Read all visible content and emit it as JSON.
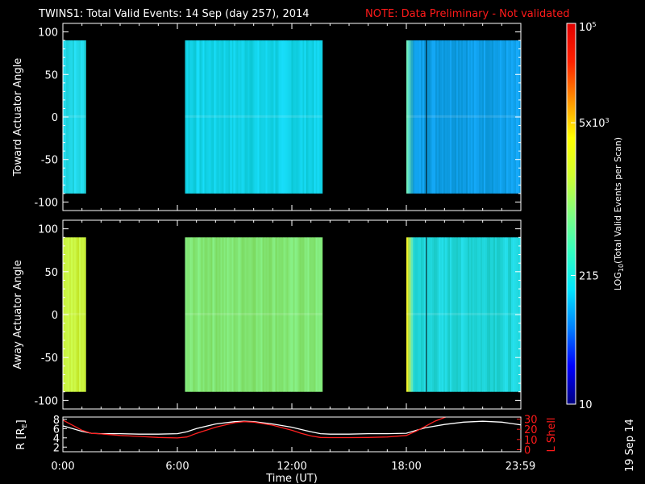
{
  "title": {
    "main": "TWINS1: Total Valid Events: 14 Sep (day 257), 2014",
    "note": "NOTE: Data Preliminary - Not validated",
    "note_color": "#ff1a1a"
  },
  "date_stamp": "19 Sep 14",
  "chart_data": [
    {
      "type": "heatmap",
      "panel": "top",
      "ylabel": "Toward Actuator Angle",
      "ylim": [
        -110,
        110
      ],
      "yticks": [
        "100",
        "50",
        "0",
        "-50",
        "-100"
      ],
      "xlim_hours": [
        0,
        24
      ],
      "data_range_angle": [
        -90,
        90
      ],
      "segments": [
        {
          "start_h": 0.0,
          "end_h": 1.2,
          "base_color": "#22d9e9"
        },
        {
          "start_h": 6.4,
          "end_h": 13.6,
          "base_color": "#12d2e7"
        },
        {
          "start_h": 18.0,
          "end_h": 24.0,
          "base_color": "#0f9fe8",
          "leading_color": "#6ce6b0"
        }
      ],
      "marker_line_h": 19.05
    },
    {
      "type": "heatmap",
      "panel": "middle",
      "ylabel": "Away Actuator Angle",
      "ylim": [
        -110,
        110
      ],
      "yticks": [
        "100",
        "50",
        "0",
        "-50",
        "-100"
      ],
      "xlim_hours": [
        0,
        24
      ],
      "data_range_angle": [
        -90,
        90
      ],
      "segments": [
        {
          "start_h": 0.0,
          "end_h": 1.2,
          "base_color": "#c8f03a"
        },
        {
          "start_h": 6.4,
          "end_h": 13.6,
          "base_color": "#82e675"
        },
        {
          "start_h": 18.0,
          "end_h": 24.0,
          "base_color": "#1fd5d9",
          "leading_color": "#eef22a"
        }
      ],
      "marker_line_h": 19.05
    },
    {
      "type": "line",
      "panel": "orbit",
      "ylabel_left": "R [R",
      "ylabel_left_sub": "E",
      "ylabel_left_end": "]",
      "ylabel_right": "L Shell",
      "yticks_left": [
        "8",
        "6",
        "4",
        "2"
      ],
      "ylim_left": [
        1,
        8.5
      ],
      "yticks_right": [
        "30",
        "20",
        "10",
        "0"
      ],
      "ylim_right": [
        -2,
        32
      ],
      "xlabel": "Time (UT)",
      "xticks": [
        "0:00",
        "6:00",
        "12:00",
        "18:00",
        "23:59"
      ],
      "xtick_hours": [
        0,
        6,
        12,
        18,
        23.98
      ],
      "series": [
        {
          "color": "#ffffff",
          "axis": "left",
          "x": [
            0,
            0.5,
            1.0,
            1.5,
            2,
            3,
            4,
            5,
            6,
            6.5,
            7,
            8,
            9,
            9.5,
            10,
            11,
            12,
            12.5,
            13,
            13.5,
            14,
            15,
            16,
            17,
            18,
            18.5,
            19,
            20,
            21,
            22,
            23,
            24
          ],
          "y": [
            6.6,
            6.0,
            5.4,
            5.0,
            4.9,
            4.9,
            4.8,
            4.8,
            4.9,
            5.3,
            6.0,
            7.0,
            7.5,
            7.6,
            7.5,
            7.0,
            6.3,
            5.8,
            5.3,
            4.9,
            4.8,
            4.8,
            4.9,
            4.9,
            5.0,
            5.6,
            6.2,
            6.9,
            7.4,
            7.6,
            7.4,
            6.8
          ]
        },
        {
          "color": "#ff2020",
          "axis": "right",
          "x": [
            0,
            0.5,
            1.0,
            1.5,
            2,
            3,
            4,
            5,
            6,
            6.5,
            7,
            8,
            9,
            9.5,
            10,
            11,
            12,
            12.5,
            13,
            13.5,
            14,
            15,
            16,
            17,
            18,
            18.5,
            19,
            19.5,
            20.2
          ],
          "y": [
            29,
            24,
            19,
            16,
            15.5,
            14,
            13,
            12,
            11.5,
            12.5,
            16,
            22,
            26.5,
            27.5,
            27,
            24,
            19,
            16,
            13.5,
            12,
            11.8,
            11.8,
            12,
            12.5,
            14,
            18,
            23,
            28,
            33
          ]
        }
      ]
    }
  ],
  "colorbar": {
    "label_prefix": "LOG",
    "label_sub": "10",
    "label_rest": "(Total Valid Events per Scan)",
    "ticks": [
      {
        "text": "10",
        "sup": "5",
        "frac": 1.0
      },
      {
        "text": "5x10",
        "sup": "3",
        "frac": 0.739
      },
      {
        "text": "215",
        "sup": "",
        "frac": 0.338
      },
      {
        "text": "10",
        "sup": "",
        "frac": 0.0
      }
    ],
    "range": [
      10,
      100000
    ],
    "scale": "log",
    "colors": [
      "#00007f",
      "#0000ff",
      "#0080ff",
      "#00e5ff",
      "#32ffc0",
      "#80ff80",
      "#d0ff30",
      "#ffff00",
      "#ff9000",
      "#ff2000",
      "#e00000"
    ]
  }
}
